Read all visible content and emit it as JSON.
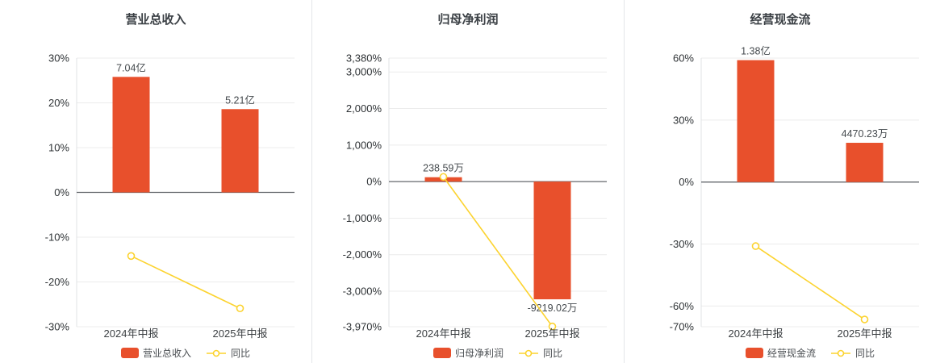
{
  "page": {
    "background": "#ffffff",
    "divider_color": "#e4e6e9"
  },
  "chart_data": [
    {
      "type": "bar+line",
      "title": "营业总收入",
      "categories": [
        "2024年中报",
        "2025年中报"
      ],
      "bar": {
        "name": "营业总收入",
        "color": "#e8502c",
        "value_labels": [
          "7.04亿",
          "5.21亿"
        ],
        "axis_values": [
          25.8,
          18.6
        ]
      },
      "line": {
        "name": "同比",
        "color": "#fcd32f",
        "values": [
          -14.2,
          -25.9
        ]
      },
      "ylim": [
        -30,
        30
      ],
      "ytick_values": [
        30,
        20,
        10,
        0,
        -10,
        -20,
        -30
      ],
      "ytick_labels": [
        "30%",
        "20%",
        "10%",
        "0%",
        "-10%",
        "-20%",
        "-30%"
      ],
      "legend_position": "bottom",
      "grid": true
    },
    {
      "type": "bar+line",
      "title": "归母净利润",
      "categories": [
        "2024年中报",
        "2025年中报"
      ],
      "bar": {
        "name": "归母净利润",
        "color": "#e8502c",
        "value_labels": [
          "238.59万",
          "-9219.02万"
        ],
        "axis_values": [
          120,
          -3220
        ]
      },
      "line": {
        "name": "同比",
        "color": "#fcd32f",
        "values": [
          130,
          -3964
        ]
      },
      "ylim": [
        -3970,
        3380
      ],
      "ytick_values": [
        3380,
        3000,
        2000,
        1000,
        0,
        -1000,
        -2000,
        -3000,
        -3970
      ],
      "ytick_labels": [
        "3,380%",
        "3,000%",
        "2,000%",
        "1,000%",
        "0%",
        "-1,000%",
        "-2,000%",
        "-3,000%",
        "-3,970%"
      ],
      "legend_position": "bottom",
      "grid": true
    },
    {
      "type": "bar+line",
      "title": "经营现金流",
      "categories": [
        "2024年中报",
        "2025年中报"
      ],
      "bar": {
        "name": "经营现金流",
        "color": "#e8502c",
        "value_labels": [
          "1.38亿",
          "4470.23万"
        ],
        "axis_values": [
          59,
          19
        ]
      },
      "line": {
        "name": "同比",
        "color": "#fcd32f",
        "values": [
          -31,
          -66.5
        ]
      },
      "ylim": [
        -70,
        60
      ],
      "ytick_values": [
        60,
        30,
        0,
        -30,
        -60,
        -70
      ],
      "ytick_labels": [
        "60%",
        "30%",
        "0%",
        "-30%",
        "-60%",
        "-70%"
      ],
      "legend_position": "bottom",
      "grid": true
    }
  ]
}
